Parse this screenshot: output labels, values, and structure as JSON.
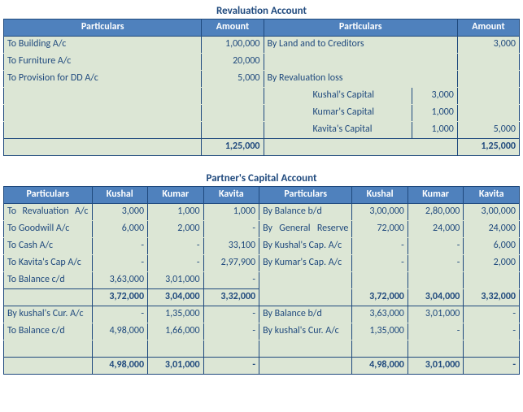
{
  "colors": {
    "header_bg": "#4f81bd",
    "header_fg": "#ffffff",
    "cell_bg": "#dce6d5",
    "border": "#1f497d",
    "text": "#1f497d"
  },
  "reval": {
    "title": "Revaluation Account",
    "headers": [
      "Particulars",
      "Amount",
      "Particulars",
      "Amount"
    ],
    "dr": [
      {
        "label": "To Building A/c",
        "amt": "1,00,000"
      },
      {
        "label": "To Furniture A/c",
        "amt": "20,000"
      },
      {
        "label": "To Provision for DD A/c",
        "amt": "5,000"
      }
    ],
    "cr": {
      "row1": {
        "label": "By Land and to Creditors",
        "amt": "3,000"
      },
      "loss_label": "By Revaluation loss",
      "loss_items": [
        {
          "label": "Kushal's Capital",
          "sub": "3,000"
        },
        {
          "label": "Kumar's Capital",
          "sub": "1,000"
        },
        {
          "label": "Kavita's Capital",
          "sub": "1,000",
          "amt": "5,000"
        }
      ]
    },
    "total": "1,25,000"
  },
  "pca": {
    "title": "Partner's Capital Account",
    "headers": [
      "Particulars",
      "Kushal",
      "Kumar",
      "Kavita",
      "Particulars",
      "Kushal",
      "Kumar",
      "Kavita"
    ],
    "rows": [
      {
        "l": "To Revaluation A/c",
        "lj": true,
        "lk": "3,000",
        "lm": "1,000",
        "lv": "1,000",
        "r": "By Balance b/d",
        "rk": "3,00,000",
        "rm": "2,80,000",
        "rv": "3,00,000"
      },
      {
        "l": "To Goodwill A/c",
        "lk": "6,000",
        "lm": "2,000",
        "lv": "-",
        "r": "By General Reserve",
        "rj": true,
        "rk": "72,000",
        "rm": "24,000",
        "rv": "24,000"
      },
      {
        "l": "To Cash A/c",
        "lk": "-",
        "lm": "-",
        "lv": "33,100",
        "r": "By Kushal's Cap. A/c",
        "rk": "-",
        "rm": "-",
        "rv": "6,000"
      },
      {
        "l": "To Kavita's Cap A/c",
        "lk": "-",
        "lm": "-",
        "lv": "2,97,900",
        "r": "By Kumar's Cap. A/c",
        "rk": "-",
        "rm": "-",
        "rv": "2,000"
      },
      {
        "l": "To Balance c/d",
        "lk": "3,63,000",
        "lm": "3,01,000",
        "lv": "-",
        "r": "",
        "rk": "",
        "rm": "",
        "rv": "",
        "noclose_r": true
      }
    ],
    "total1": {
      "lk": "3,72,000",
      "lm": "3,04,000",
      "lv": "3,32,000",
      "rk": "3,72,000",
      "rm": "3,04,000",
      "rv": "3,32,000"
    },
    "rows2": [
      {
        "l": "By kushal's Cur. A/c",
        "lk": "-",
        "lm": "1,35,000",
        "lv": "-",
        "r": "By Balance b/d",
        "rk": "3,63,000",
        "rm": "3,01,000",
        "rv": "-"
      },
      {
        "l": "To Balance c/d",
        "lk": "4,98,000",
        "lm": "1,66,000",
        "lv": "-",
        "r": "By kushal's Cur. A/c",
        "rk": "1,35,000",
        "rm": "-",
        "rv": "-"
      },
      {
        "l": "",
        "lk": "",
        "lm": "",
        "lv": "",
        "r": "",
        "rk": "",
        "rm": "",
        "rv": ""
      }
    ],
    "total2": {
      "lk": "4,98,000",
      "lm": "3,01,000",
      "lv": "-",
      "rk": "4,98,000",
      "rm": "3,01,000",
      "rv": "-"
    }
  }
}
